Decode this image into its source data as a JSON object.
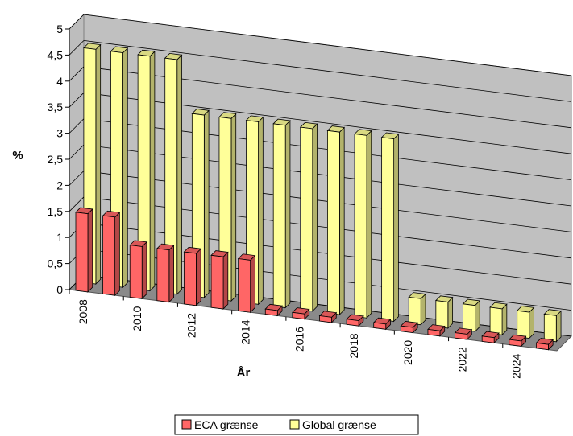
{
  "chart_data": {
    "type": "bar",
    "categories": [
      "2008",
      "2009",
      "2010",
      "2011",
      "2012",
      "2013",
      "2014",
      "2015",
      "2016",
      "2017",
      "2018",
      "2019",
      "2020",
      "2021",
      "2022",
      "2023",
      "2024",
      "2025"
    ],
    "x_tick_labels": [
      "2008",
      "2010",
      "2012",
      "2014",
      "2016",
      "2018",
      "2020",
      "2022",
      "2024"
    ],
    "series": [
      {
        "name": "ECA grænse",
        "values": [
          1.5,
          1.5,
          1,
          1,
          1,
          1,
          1,
          0.1,
          0.1,
          0.1,
          0.1,
          0.1,
          0.1,
          0.1,
          0.1,
          0.1,
          0.1,
          0.1
        ],
        "color": "#ff6666"
      },
      {
        "name": "Global grænse",
        "values": [
          4.5,
          4.5,
          4.5,
          4.5,
          3.5,
          3.5,
          3.5,
          3.5,
          3.5,
          3.5,
          3.5,
          3.5,
          0.5,
          0.5,
          0.5,
          0.5,
          0.5,
          0.5
        ],
        "color": "#ffff99"
      }
    ],
    "y_tick_labels": [
      "0",
      "0,5",
      "1",
      "1,5",
      "2",
      "2,5",
      "3",
      "3,5",
      "4",
      "4,5",
      "5"
    ],
    "ylim": [
      0,
      5
    ],
    "xlabel": "År",
    "ylabel": "%",
    "grid": true,
    "legend_position": "bottom"
  }
}
